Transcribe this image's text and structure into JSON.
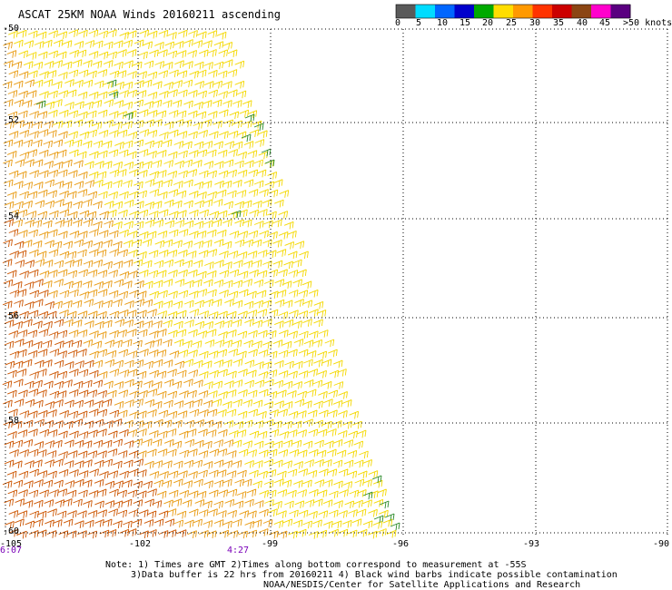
{
  "title": "ASCAT 25KM NOAA Winds 20160211 ascending",
  "colorbar": {
    "labels": [
      "0",
      "5",
      "10",
      "15",
      "20",
      "25",
      "30",
      "35",
      "40",
      "45",
      ">50 knots"
    ],
    "colors": [
      "#5a5a5a",
      "#00dcff",
      "#0066ff",
      "#0000cc",
      "#00aa00",
      "#ffdd00",
      "#ff9900",
      "#ff3300",
      "#cc0000",
      "#8b4513",
      "#ff00cc",
      "#5a0080"
    ]
  },
  "latitudes": [
    "-50",
    "-52",
    "-54",
    "-56",
    "-58",
    "-60"
  ],
  "longitudes": [
    "-105",
    "-102",
    "-99",
    "-96",
    "-93",
    "-90"
  ],
  "times": [
    "6:07",
    "4:27"
  ],
  "notes": [
    "Note: 1) Times are GMT 2)Times along bottom correspond to measurement at -55S",
    "3)Data buffer is 22 hrs from 20160211 4) Black wind barbs indicate possible contamination",
    "NOAA/NESDIS/Center for Satellite Applications and Research"
  ],
  "barb_colors": {
    "strong": "#cc5500",
    "moderate": "#e89a10",
    "light": "#f4d800",
    "weak": "#2a8a2a"
  }
}
